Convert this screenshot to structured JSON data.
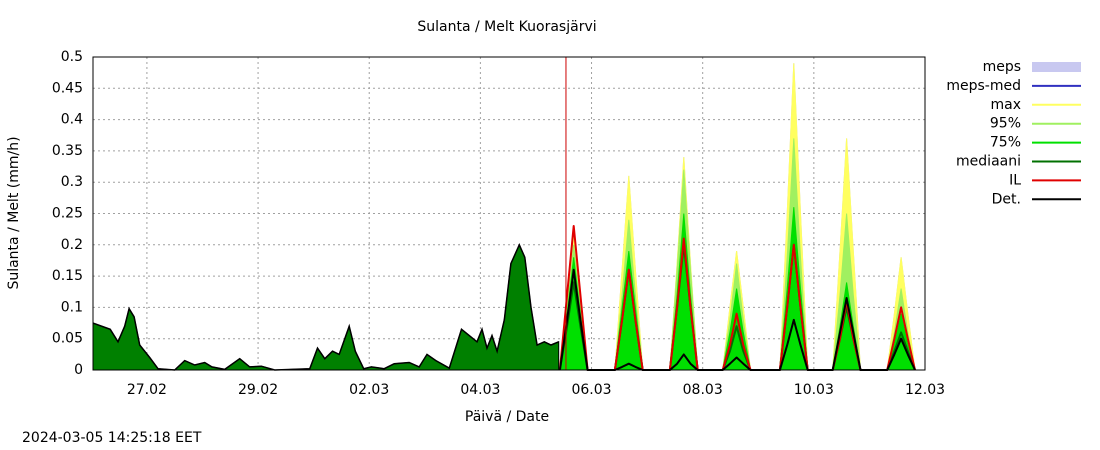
{
  "chart_data": {
    "type": "line",
    "title": "Sulanta / Melt  Kuorasjärvi",
    "x_label": "Päivä / Date",
    "y_label": "Sulanta / Melt (mm/h)",
    "timestamp": "2024-03-05 14:25:18 EET",
    "xlim": [
      0.03,
      15
    ],
    "xticks": [
      {
        "value": 1,
        "label": "27.02"
      },
      {
        "value": 3,
        "label": "29.02"
      },
      {
        "value": 5,
        "label": "02.03"
      },
      {
        "value": 7,
        "label": "04.03"
      },
      {
        "value": 9,
        "label": "06.03"
      },
      {
        "value": 11,
        "label": "08.03"
      },
      {
        "value": 13,
        "label": "10.03"
      },
      {
        "value": 15,
        "label": "12.03"
      }
    ],
    "ylim": [
      0,
      0.5
    ],
    "yticks": [
      0,
      0.05,
      0.1,
      0.15,
      0.2,
      0.25,
      0.3,
      0.35,
      0.4,
      0.45,
      0.5
    ],
    "grid": true,
    "legend": "right",
    "now_line": {
      "x": 8.54,
      "color": "#cc0000"
    },
    "observed": {
      "color": "#008000",
      "line_color": "#000000",
      "x": [
        0.03,
        0.34,
        0.48,
        0.6,
        0.68,
        0.77,
        0.87,
        1.05,
        1.2,
        1.5,
        1.68,
        1.86,
        2.04,
        2.17,
        2.4,
        2.67,
        2.85,
        3.06,
        3.3,
        3.93,
        4.07,
        4.2,
        4.34,
        4.46,
        4.64,
        4.75,
        4.9,
        5.04,
        5.27,
        5.45,
        5.72,
        5.9,
        6.04,
        6.2,
        6.44,
        6.66,
        6.8,
        6.94,
        7.03,
        7.12,
        7.21,
        7.3,
        7.43,
        7.55,
        7.7,
        7.8,
        7.91,
        8.02,
        8.15,
        8.27,
        8.41
      ],
      "values": [
        0.075,
        0.065,
        0.045,
        0.07,
        0.098,
        0.085,
        0.04,
        0.02,
        0.002,
        0,
        0.015,
        0.008,
        0.012,
        0.005,
        0.001,
        0.018,
        0.005,
        0.006,
        0,
        0.002,
        0.035,
        0.018,
        0.03,
        0.025,
        0.07,
        0.03,
        0.002,
        0.005,
        0.002,
        0.01,
        0.012,
        0.005,
        0.025,
        0.015,
        0.003,
        0.065,
        0.055,
        0.045,
        0.065,
        0.035,
        0.055,
        0.03,
        0.08,
        0.17,
        0.2,
        0.18,
        0.1,
        0.04,
        0.045,
        0.04,
        0.045
      ]
    },
    "x": [
      8.43,
      8.56,
      8.68,
      8.8,
      8.93,
      9.42,
      9.55,
      9.67,
      9.79,
      9.92,
      10.41,
      10.54,
      10.66,
      10.78,
      10.91,
      11.36,
      11.49,
      11.61,
      11.73,
      11.86,
      12.39,
      12.52,
      12.64,
      12.76,
      12.89,
      13.34,
      13.47,
      13.59,
      13.71,
      13.84,
      14.32,
      14.45,
      14.57,
      14.69,
      14.82
    ],
    "series": [
      {
        "name": "meps",
        "color": "#c8c8f0",
        "style": "area",
        "values": [
          0,
          0.11,
          0.22,
          0.11,
          0,
          0,
          0.16,
          0.31,
          0.16,
          0,
          0,
          0.17,
          0.34,
          0.17,
          0,
          0,
          0.1,
          0.19,
          0.1,
          0,
          0,
          0.25,
          0.49,
          0.25,
          0,
          0,
          0.19,
          0.37,
          0.19,
          0,
          0,
          0.09,
          0.18,
          0.09,
          0
        ]
      },
      {
        "name": "meps-med",
        "color": "#3030c0",
        "style": "line",
        "values": [
          0,
          0.07,
          0.14,
          0.07,
          0,
          0,
          0.08,
          0.16,
          0.08,
          0,
          0,
          0.1,
          0.2,
          0.1,
          0,
          0,
          0.03,
          0.07,
          0.03,
          0,
          0,
          0.1,
          0.2,
          0.1,
          0,
          0,
          0.05,
          0.1,
          0.05,
          0,
          0,
          0.03,
          0.06,
          0.03,
          0
        ]
      },
      {
        "name": "max",
        "color": "#ffff60",
        "style": "area",
        "values": [
          0,
          0.11,
          0.22,
          0.11,
          0,
          0,
          0.16,
          0.31,
          0.16,
          0,
          0,
          0.17,
          0.34,
          0.17,
          0,
          0,
          0.1,
          0.19,
          0.1,
          0,
          0,
          0.25,
          0.49,
          0.25,
          0,
          0,
          0.19,
          0.37,
          0.19,
          0,
          0,
          0.09,
          0.18,
          0.09,
          0
        ]
      },
      {
        "name": "95%",
        "color": "#a0f060",
        "style": "area",
        "values": [
          0,
          0.1,
          0.2,
          0.1,
          0,
          0,
          0.12,
          0.24,
          0.12,
          0,
          0,
          0.16,
          0.32,
          0.16,
          0,
          0,
          0.08,
          0.17,
          0.08,
          0,
          0,
          0.18,
          0.37,
          0.18,
          0,
          0,
          0.12,
          0.25,
          0.12,
          0,
          0,
          0.06,
          0.13,
          0.06,
          0
        ]
      },
      {
        "name": "75%",
        "color": "#00e000",
        "style": "area",
        "values": [
          0,
          0.09,
          0.18,
          0.09,
          0,
          0,
          0.1,
          0.19,
          0.1,
          0,
          0,
          0.12,
          0.25,
          0.12,
          0,
          0,
          0.06,
          0.13,
          0.06,
          0,
          0,
          0.13,
          0.26,
          0.13,
          0,
          0,
          0.07,
          0.14,
          0.07,
          0,
          0,
          0.04,
          0.09,
          0.04,
          0
        ]
      },
      {
        "name": "mediaani",
        "color": "#007000",
        "style": "line",
        "values": [
          0,
          0.07,
          0.14,
          0.07,
          0,
          0,
          0.08,
          0.16,
          0.08,
          0,
          0,
          0.1,
          0.2,
          0.1,
          0,
          0,
          0.03,
          0.07,
          0.03,
          0,
          0,
          0.1,
          0.2,
          0.1,
          0,
          0,
          0.05,
          0.1,
          0.05,
          0,
          0,
          0.03,
          0.06,
          0.03,
          0
        ]
      },
      {
        "name": "IL",
        "color": "#e00000",
        "style": "line",
        "values": [
          0,
          0.12,
          0.23,
          0.12,
          0,
          0,
          0.08,
          0.16,
          0.08,
          0,
          0,
          0.1,
          0.21,
          0.1,
          0,
          0,
          0.04,
          0.09,
          0.04,
          0,
          0,
          0.1,
          0.2,
          0.1,
          0,
          0,
          0.05,
          0.11,
          0.05,
          0,
          0,
          0.05,
          0.1,
          0.05,
          0
        ]
      },
      {
        "name": "Det.",
        "color": "#000000",
        "style": "line",
        "values": [
          0,
          0.08,
          0.16,
          0.08,
          0,
          0,
          0.005,
          0.01,
          0.005,
          0,
          0,
          0.01,
          0.025,
          0.01,
          0,
          0,
          0.01,
          0.02,
          0.01,
          0,
          0,
          0.04,
          0.08,
          0.04,
          0,
          0,
          0.06,
          0.115,
          0.06,
          0,
          0,
          0.025,
          0.05,
          0.025,
          0
        ]
      }
    ]
  }
}
